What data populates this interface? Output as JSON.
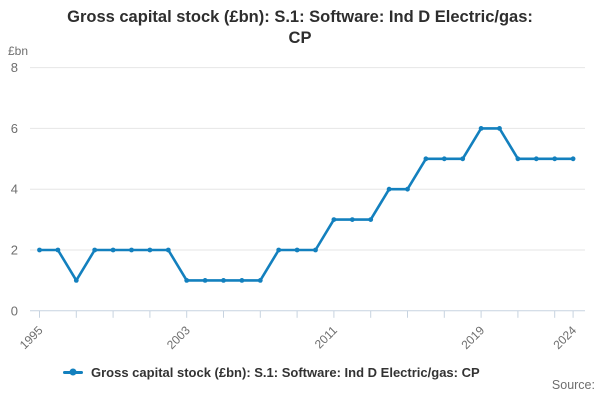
{
  "header": {
    "title_line1": "Gross capital stock (£bn): S.1: Software: Ind D Electric/gas:",
    "title_line2": "CP"
  },
  "axes": {
    "unit_label": "£bn"
  },
  "legend": {
    "label": "Gross capital stock (£bn): S.1: Software: Ind D Electric/gas: CP"
  },
  "footer": {
    "source_label": "Source:"
  },
  "colors": {
    "line": "#1380be",
    "grid": "#e6e6e6",
    "axis": "#c7d3e0",
    "muted_text": "#6e6e6e",
    "title_text": "#2e2e2e"
  },
  "chart_data": {
    "type": "line",
    "title": "Gross capital stock (£bn): S.1: Software: Ind D Electric/gas: CP",
    "xlabel": "",
    "ylabel": "£bn",
    "ylim": [
      0,
      8
    ],
    "y_ticks": [
      0,
      2,
      4,
      6,
      8
    ],
    "x_ticks": [
      1995,
      1997,
      1999,
      2001,
      2003,
      2005,
      2007,
      2009,
      2011,
      2013,
      2015,
      2017,
      2019,
      2021,
      2023,
      2024
    ],
    "x_tick_labels": [
      "1995",
      "2003",
      "2011",
      "2019",
      "2024"
    ],
    "grid": true,
    "legend_position": "bottom",
    "marker": "dot",
    "x": [
      1995,
      1996,
      1997,
      1998,
      1999,
      2000,
      2001,
      2002,
      2003,
      2004,
      2005,
      2006,
      2007,
      2008,
      2009,
      2010,
      2011,
      2012,
      2013,
      2014,
      2015,
      2016,
      2017,
      2018,
      2019,
      2020,
      2021,
      2022,
      2023,
      2024
    ],
    "series": [
      {
        "name": "Gross capital stock (£bn): S.1: Software: Ind D Electric/gas: CP",
        "color": "#1380be",
        "values": [
          2,
          2,
          1,
          2,
          2,
          2,
          2,
          2,
          1,
          1,
          1,
          1,
          1,
          2,
          2,
          2,
          3,
          3,
          3,
          4,
          4,
          5,
          5,
          5,
          6,
          6,
          5,
          5,
          5,
          5
        ]
      }
    ]
  }
}
